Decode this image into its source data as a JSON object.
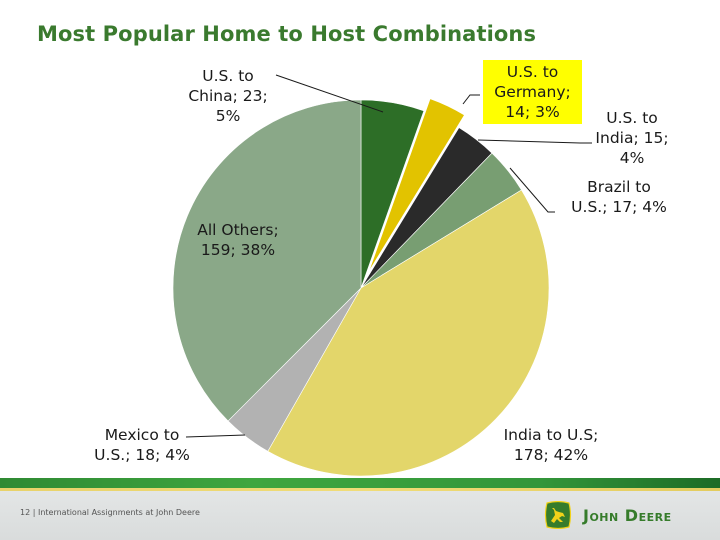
{
  "slide": {
    "title": "Most Popular Home to Host Combinations",
    "footer_text": "12 | International Assignments at John Deere",
    "page_number": "12",
    "brand_name": "John Deere"
  },
  "labels": {
    "china": [
      "U.S. to",
      "China; 23;",
      "5%"
    ],
    "germany": [
      "U.S. to",
      "Germany;",
      "14; 3%"
    ],
    "india": [
      "U.S. to",
      "India; 15;",
      "4%"
    ],
    "brazil": [
      "Brazil to",
      "U.S.; 17; 4%"
    ],
    "india_us": [
      "India to U.S;",
      "178; 42%"
    ],
    "mexico": [
      "Mexico to",
      "U.S.; 18; 4%"
    ],
    "others": [
      "All Others;",
      "159; 38%"
    ]
  },
  "colors": {
    "title": "#3a7a2e",
    "china": "#2d6e27",
    "germany": "#e2c300",
    "india": "#2a2a2a",
    "brazil": "#789e72",
    "india_us": "#e3d66a",
    "mexico": "#b2b2b2",
    "others": "#8aa888",
    "highlight": "#ffff00"
  },
  "chart_data": {
    "type": "pie",
    "title": "Most Popular Home to Host Combinations",
    "categories": [
      "U.S. to China",
      "U.S. to Germany",
      "U.S. to India",
      "Brazil to U.S.",
      "India to U.S",
      "Mexico to U.S.",
      "All Others"
    ],
    "values": [
      23,
      14,
      15,
      17,
      178,
      18,
      159
    ],
    "percentages": [
      5,
      3,
      4,
      4,
      42,
      4,
      38
    ],
    "exploded": [
      "U.S. to Germany"
    ],
    "highlighted_label": "U.S. to Germany",
    "start_angle": "12 o'clock, clockwise",
    "legend": "none (data labels)"
  }
}
